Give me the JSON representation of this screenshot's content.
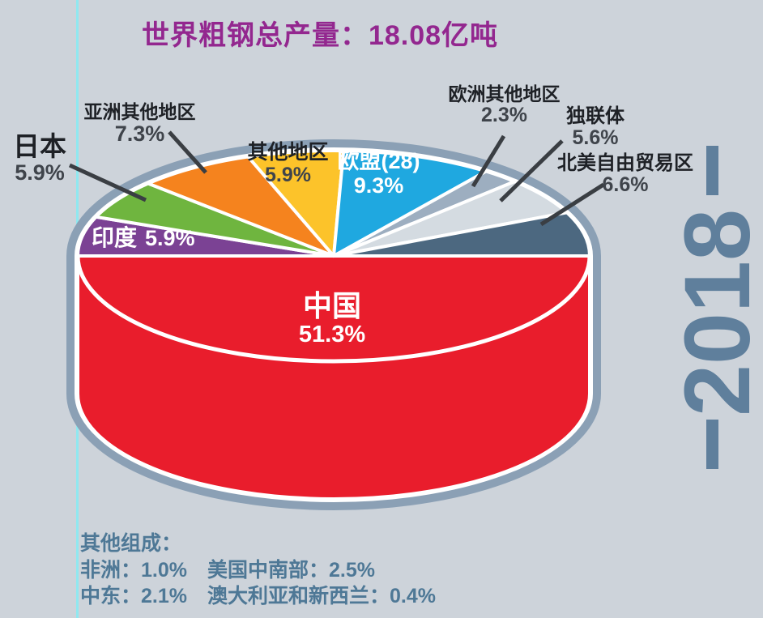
{
  "title": "世界粗钢总产量：18.08亿吨",
  "year": "2018",
  "colors": {
    "background": "#CDD3DA",
    "platter_rim": "#8BA0B5",
    "guide_line": "#8FE8F0",
    "title": "#93278F",
    "year": "#5F7F9C",
    "footnote": "#4E7896",
    "leader_line": "#3A3E43",
    "slice_divider": "#FFFFFF"
  },
  "chart_data": {
    "type": "pie",
    "style": "3d-bowl",
    "title": "世界粗钢总产量：18.08亿吨",
    "total_value": 18.08,
    "total_unit": "亿吨",
    "unit": "%",
    "slices": [
      {
        "label": "中国",
        "value": 51.3,
        "pct": "51.3%",
        "color": "#E91D2C"
      },
      {
        "label": "印度",
        "value": 5.9,
        "pct": "5.9%",
        "color": "#7B4294"
      },
      {
        "label": "日本",
        "value": 5.9,
        "pct": "5.9%",
        "color": "#6FB53F"
      },
      {
        "label": "亚洲其他地区",
        "value": 7.3,
        "pct": "7.3%",
        "color": "#F5831E"
      },
      {
        "label": "其他地区",
        "value": 5.9,
        "pct": "5.9%",
        "color": "#FCC32A"
      },
      {
        "label": "欧盟(28)",
        "value": 9.3,
        "pct": "9.3%",
        "color": "#1FA8E0"
      },
      {
        "label": "欧洲其他地区",
        "value": 2.3,
        "pct": "2.3%",
        "color": "#9DAEC0"
      },
      {
        "label": "独联体",
        "value": 5.6,
        "pct": "5.6%",
        "color": "#D4DBE1"
      },
      {
        "label": "北美自由贸易区",
        "value": 6.6,
        "pct": "6.6%",
        "color": "#4C6880"
      }
    ],
    "other_breakdown": {
      "heading": "其他组成：",
      "items": [
        {
          "label": "非洲",
          "value": 1.0,
          "pct": "1.0%",
          "text": "非洲：1.0%"
        },
        {
          "label": "美国中南部",
          "value": 2.5,
          "pct": "2.5%",
          "text": "美国中南部：2.5%"
        },
        {
          "label": "中东",
          "value": 2.1,
          "pct": "2.1%",
          "text": "中东：2.1%"
        },
        {
          "label": "澳大利亚和新西兰",
          "value": 0.4,
          "pct": "0.4%",
          "text": "澳大利亚和新西兰：0.4%"
        }
      ]
    }
  }
}
